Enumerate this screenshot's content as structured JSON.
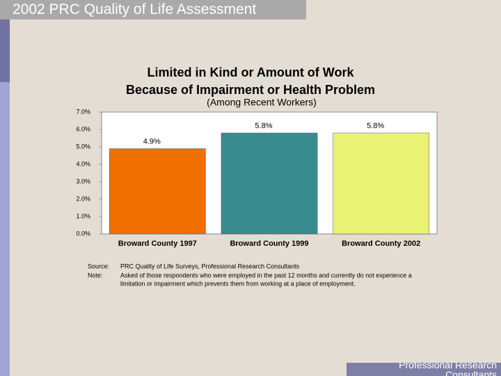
{
  "header": "2002 PRC Quality of Life Assessment",
  "footer": "Professional Research Consultants",
  "chart_data": {
    "type": "bar",
    "title": [
      "Limited in Kind or Amount of Work",
      "Because of Impairment or Health Problem"
    ],
    "subtitle": "(Among Recent Workers)",
    "categories": [
      "Broward County 1997",
      "Broward County 1999",
      "Broward County 2002"
    ],
    "values": [
      4.9,
      5.8,
      5.8
    ],
    "value_labels": [
      "4.9%",
      "5.8%",
      "5.8%"
    ],
    "colors": [
      "#f07000",
      "#3a8b8f",
      "#e9f274"
    ],
    "ylim": [
      0,
      7
    ],
    "yticks": [
      {
        "value": 0,
        "label": "0.0%"
      },
      {
        "value": 1,
        "label": "1.0%"
      },
      {
        "value": 2,
        "label": "2.0%"
      },
      {
        "value": 3,
        "label": "3.0%"
      },
      {
        "value": 4,
        "label": "4.0%"
      },
      {
        "value": 5,
        "label": "5.0%"
      },
      {
        "value": 6,
        "label": "6.0%"
      },
      {
        "value": 7,
        "label": "7.0%"
      }
    ],
    "grid": false,
    "source_label": "Source:",
    "source": "PRC Quality of Life Surveys, Professional Research Consultants",
    "note_label": "Note:",
    "note": [
      "Asked of those respondents who were employed in the past 12 months and currently do not  experience a",
      "limitation or impairment which prevents them from working at a place of employment."
    ]
  }
}
